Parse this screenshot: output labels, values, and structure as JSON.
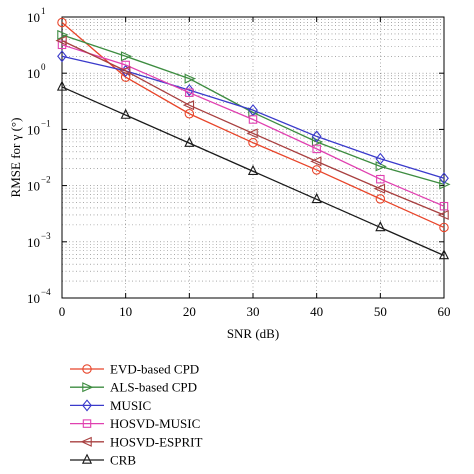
{
  "chart_data": {
    "type": "line",
    "xlabel": "SNR (dB)",
    "ylabel": "RMSE for γ (°)",
    "xlim": [
      0,
      60
    ],
    "ylim": [
      0.0001,
      10
    ],
    "yscale": "log",
    "grid": true,
    "x_ticks": [
      0,
      10,
      20,
      30,
      40,
      50,
      60
    ],
    "y_ticks": [
      {
        "value": 0.0001,
        "base": "10",
        "exp": "−4"
      },
      {
        "value": 0.001,
        "base": "10",
        "exp": "−3"
      },
      {
        "value": 0.01,
        "base": "10",
        "exp": "−2"
      },
      {
        "value": 0.1,
        "base": "10",
        "exp": "−1"
      },
      {
        "value": 1,
        "base": "10",
        "exp": "0"
      },
      {
        "value": 10,
        "base": "10",
        "exp": "1"
      }
    ],
    "legend_position": "below",
    "x": [
      0,
      10,
      20,
      30,
      40,
      50,
      60
    ],
    "series": [
      {
        "name": "EVD-based CPD",
        "color": "#e8452a",
        "marker": "circle",
        "values": [
          8.0,
          0.85,
          0.19,
          0.058,
          0.019,
          0.0058,
          0.0018
        ]
      },
      {
        "name": "ALS-based CPD",
        "color": "#3d8c40",
        "marker": "triangle-right",
        "values": [
          4.8,
          2.0,
          0.8,
          0.2,
          0.06,
          0.022,
          0.0105
        ]
      },
      {
        "name": "MUSIC",
        "color": "#3a3acb",
        "marker": "diamond",
        "values": [
          2.0,
          1.1,
          0.5,
          0.22,
          0.075,
          0.03,
          0.0135
        ]
      },
      {
        "name": "HOSVD-MUSIC",
        "color": "#e040b0",
        "marker": "square",
        "values": [
          3.2,
          1.4,
          0.45,
          0.15,
          0.045,
          0.013,
          0.0043
        ]
      },
      {
        "name": "HOSVD-ESPRIT",
        "color": "#a84040",
        "marker": "triangle-left",
        "values": [
          3.8,
          1.1,
          0.27,
          0.085,
          0.027,
          0.0088,
          0.003
        ]
      },
      {
        "name": "CRB",
        "color": "#1a1a1a",
        "marker": "triangle-up",
        "values": [
          0.57,
          0.18,
          0.057,
          0.018,
          0.0057,
          0.0018,
          0.00057
        ]
      }
    ]
  }
}
